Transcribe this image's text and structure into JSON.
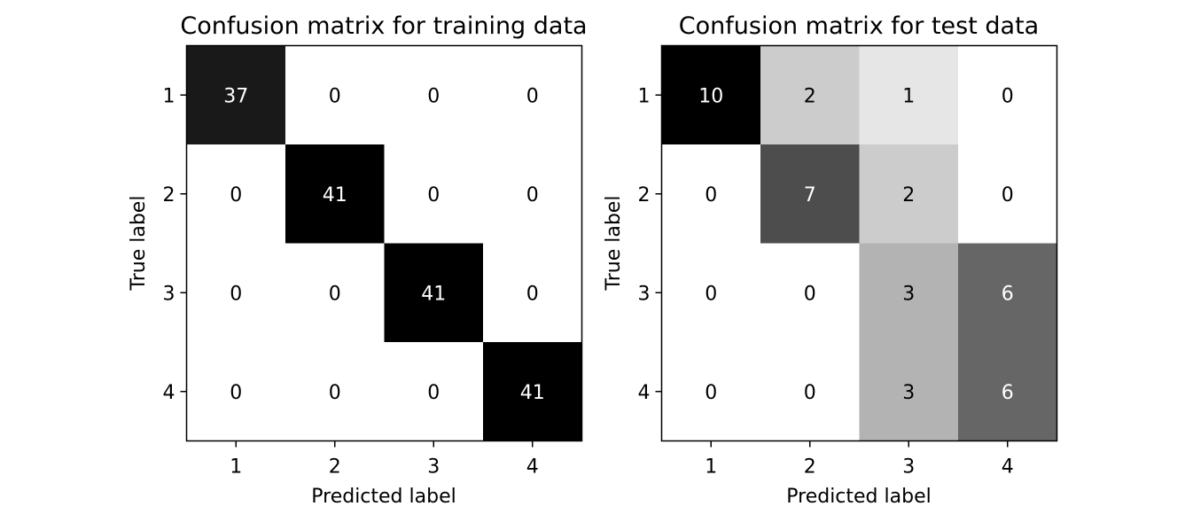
{
  "chart_data": [
    {
      "type": "heatmap",
      "title": "Confusion matrix for training data",
      "xlabel": "Predicted label",
      "ylabel": "True label",
      "x_categories": [
        "1",
        "2",
        "3",
        "4"
      ],
      "y_categories": [
        "1",
        "2",
        "3",
        "4"
      ],
      "values": [
        [
          37,
          0,
          0,
          0
        ],
        [
          0,
          41,
          0,
          0
        ],
        [
          0,
          0,
          41,
          0
        ],
        [
          0,
          0,
          0,
          41
        ]
      ],
      "colormap": "grayscale (white = low, black = high)",
      "grid": false,
      "legend": "none"
    },
    {
      "type": "heatmap",
      "title": "Confusion matrix for test data",
      "xlabel": "Predicted label",
      "ylabel": "True label",
      "x_categories": [
        "1",
        "2",
        "3",
        "4"
      ],
      "y_categories": [
        "1",
        "2",
        "3",
        "4"
      ],
      "values": [
        [
          10,
          2,
          1,
          0
        ],
        [
          0,
          7,
          2,
          0
        ],
        [
          0,
          0,
          3,
          6
        ],
        [
          0,
          0,
          3,
          6
        ]
      ],
      "colormap": "grayscale (white = low, black = high)",
      "grid": false,
      "legend": "none"
    }
  ],
  "colors": {
    "low": "#ffffff",
    "high": "#000000",
    "text_on_dark": "#ffffff",
    "text_on_light": "#000000"
  }
}
